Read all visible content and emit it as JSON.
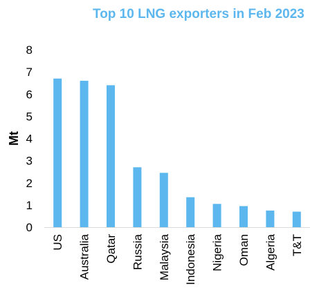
{
  "chart_data": {
    "type": "bar",
    "title": "Top 10 LNG exporters in Feb 2023",
    "xlabel": "",
    "ylabel": "Mt",
    "categories": [
      "US",
      "Australia",
      "Qatar",
      "Russia",
      "Malaysia",
      "Indonesia",
      "Nigeria",
      "Oman",
      "Algeria",
      "T&T"
    ],
    "values": [
      6.7,
      6.6,
      6.4,
      2.7,
      2.45,
      1.35,
      1.05,
      0.95,
      0.75,
      0.7
    ],
    "ylim": [
      0,
      8
    ],
    "yticks": [
      0,
      1,
      2,
      3,
      4,
      5,
      6,
      7,
      8
    ],
    "grid": false,
    "legend": "none",
    "bar_color": "#5bb7ee",
    "title_color": "#5bb7ee"
  }
}
